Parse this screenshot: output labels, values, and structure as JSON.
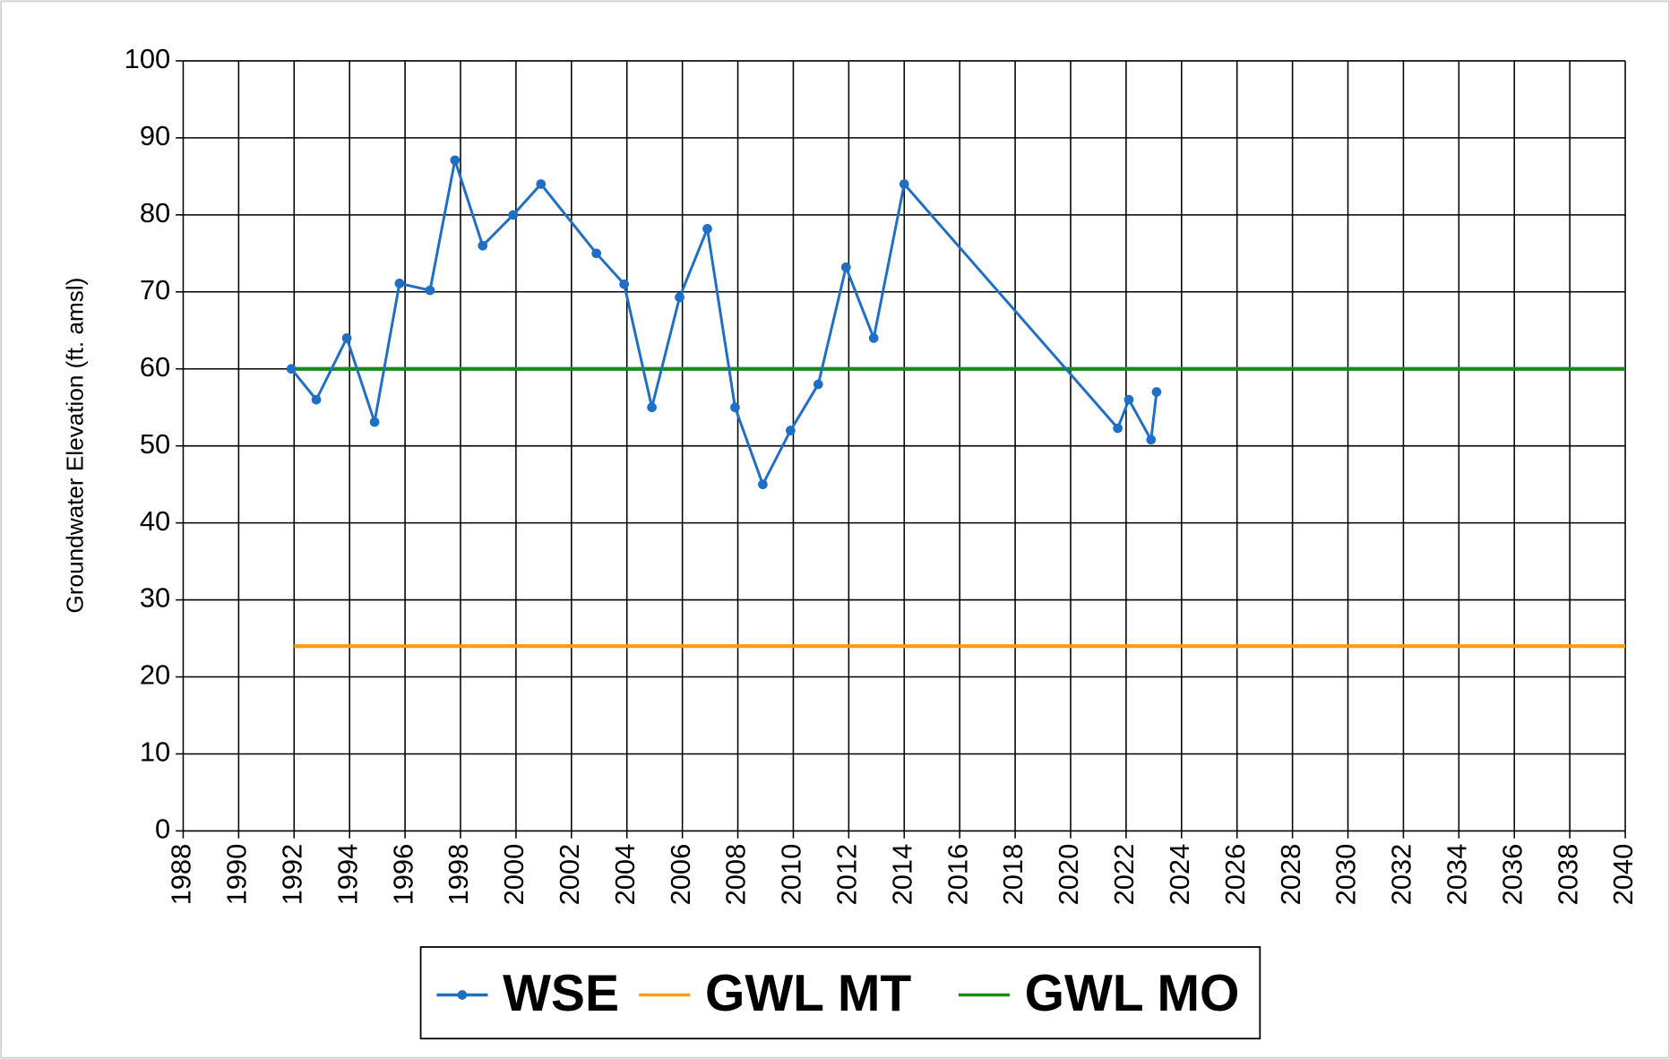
{
  "chart_data": {
    "type": "line",
    "ylabel": "Groundwater Elevation (ft. amsl)",
    "xlim": [
      1988,
      2040
    ],
    "xticks": [
      1988,
      1990,
      1992,
      1994,
      1996,
      1998,
      2000,
      2002,
      2004,
      2006,
      2008,
      2010,
      2012,
      2014,
      2016,
      2018,
      2020,
      2022,
      2024,
      2026,
      2028,
      2030,
      2032,
      2034,
      2036,
      2038,
      2040
    ],
    "ylim": [
      0,
      100
    ],
    "yticks": [
      0,
      10,
      20,
      30,
      40,
      50,
      60,
      70,
      80,
      90,
      100
    ],
    "grid": true,
    "legend": "bottom",
    "series": [
      {
        "name": "WSE",
        "color": "#1f6fc5",
        "markers": true,
        "x": [
          1991.9,
          1992.8,
          1993.9,
          1994.9,
          1995.8,
          1996.9,
          1997.8,
          1998.8,
          1999.9,
          2000.9,
          2002.9,
          2003.9,
          2004.9,
          2005.9,
          2006.9,
          2007.9,
          2008.9,
          2009.9,
          2010.9,
          2011.9,
          2012.9,
          2014.0,
          2021.7,
          2022.1,
          2022.9,
          2023.1
        ],
        "values": [
          60,
          56,
          64,
          53.1,
          71.1,
          70.2,
          87.1,
          76,
          80,
          84,
          75,
          71,
          55,
          69.3,
          78.2,
          55,
          45,
          52,
          58,
          73.2,
          64,
          84,
          52.3,
          56,
          50.8,
          57
        ]
      },
      {
        "name": "GWL MT",
        "color": "#ff9a0a",
        "markers": false,
        "x": [
          1992,
          2040
        ],
        "values": [
          24,
          24
        ]
      },
      {
        "name": "GWL MO",
        "color": "#1a8a1a",
        "markers": false,
        "x": [
          1992,
          2040
        ],
        "values": [
          60,
          60
        ]
      }
    ]
  }
}
